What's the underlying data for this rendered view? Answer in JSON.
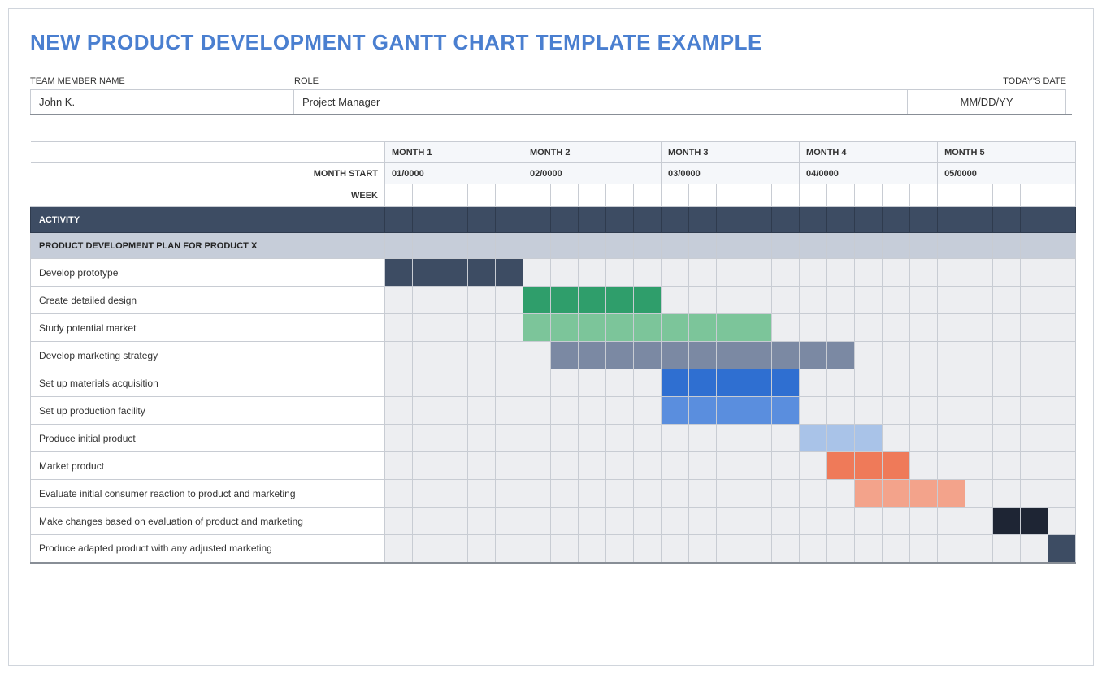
{
  "title": "NEW PRODUCT DEVELOPMENT GANTT CHART TEMPLATE EXAMPLE",
  "title_color": "#4a7fd0",
  "info": {
    "name_label": "TEAM MEMBER NAME",
    "role_label": "ROLE",
    "date_label": "TODAY'S DATE",
    "name_value": "John K.",
    "role_value": "Project Manager",
    "date_value": "MM/DD/YY"
  },
  "timeline": {
    "weeks_per_month": 5,
    "num_months": 5,
    "month_labels": [
      "MONTH 1",
      "MONTH 2",
      "MONTH 3",
      "MONTH 4",
      "MONTH 5"
    ],
    "month_start_labels": [
      "01/0000",
      "02/0000",
      "03/0000",
      "04/0000",
      "05/0000"
    ],
    "month_row_label": "",
    "start_row_label": "MONTH START",
    "week_row_label": "WEEK",
    "header_bg": "#f5f7fa",
    "border_color": "#c8ccd3"
  },
  "activity_header": {
    "label": "ACTIVITY",
    "bg": "#3d4c63",
    "fg": "#ffffff"
  },
  "section_header": {
    "label": "PRODUCT DEVELOPMENT PLAN FOR PRODUCT X",
    "bg": "#c6cdd9",
    "fg": "#222222"
  },
  "row_bg_empty": "#edeef1",
  "bottom_border_color": "#888e96",
  "tasks": [
    {
      "label": "Develop prototype",
      "start": 0,
      "span": 5,
      "color": "#3d4c63"
    },
    {
      "label": "Create detailed design",
      "start": 5,
      "span": 5,
      "color": "#2f9e6b"
    },
    {
      "label": "Study potential market",
      "start": 5,
      "span": 9,
      "color": "#7cc59a"
    },
    {
      "label": "Develop marketing strategy",
      "start": 6,
      "span": 11,
      "color": "#7b89a3"
    },
    {
      "label": "Set up materials acquisition",
      "start": 10,
      "span": 5,
      "color": "#2f6fd1"
    },
    {
      "label": "Set up production facility",
      "start": 10,
      "span": 5,
      "color": "#5a8ede"
    },
    {
      "label": "Produce initial product",
      "start": 15,
      "span": 3,
      "color": "#a9c3e8"
    },
    {
      "label": "Market product",
      "start": 16,
      "span": 3,
      "color": "#ef7a59"
    },
    {
      "label": "Evaluate initial consumer reaction to product and marketing",
      "start": 17,
      "span": 4,
      "color": "#f3a38b"
    },
    {
      "label": "Make changes based on evaluation of product and marketing",
      "start": 22,
      "span": 2,
      "color": "#1e2534"
    },
    {
      "label": "Produce adapted product with any adjusted marketing",
      "start": 24,
      "span": 1,
      "color": "#3d4c63"
    }
  ]
}
